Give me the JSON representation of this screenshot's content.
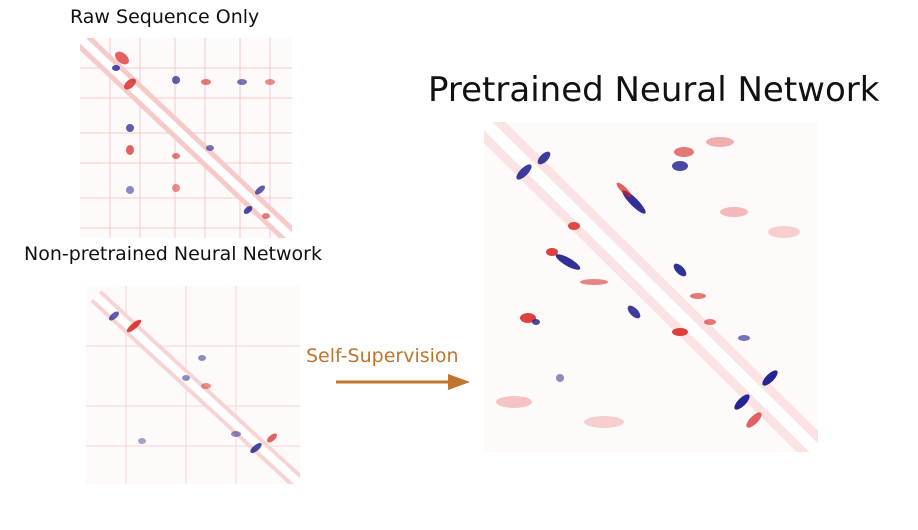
{
  "labels": {
    "raw": "Raw Sequence Only",
    "non_pretrained": "Non-pretrained Neural Network",
    "pretrained": "Pretrained Neural Network",
    "arrow": "Self-Supervision"
  },
  "colors": {
    "positive": "#d62020",
    "negative": "#1a1a8c",
    "arrow": "#c0742c",
    "background": "#ffffff"
  }
}
